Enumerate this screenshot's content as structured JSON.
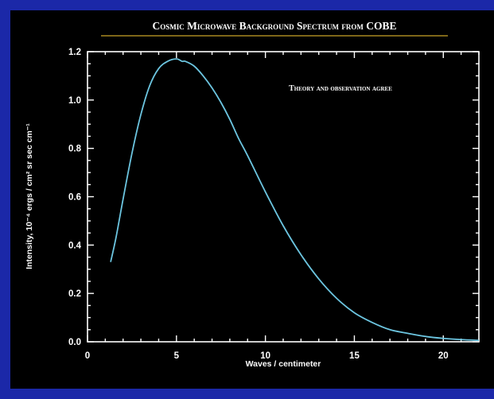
{
  "colors": {
    "outer_border": "#1b28a8",
    "background": "#000000",
    "curve": "#6cc5e0",
    "text": "#ffffff",
    "title_rule": "#c9a227"
  },
  "chart_data": {
    "type": "line",
    "title": "Cosmic Microwave Background Spectrum from COBE",
    "annotation": "Theory and observation agree",
    "xlabel": "Waves / centimeter",
    "ylabel": "Intensity, 10⁻⁴ ergs / cm² sr sec cm⁻¹",
    "xlim": [
      0,
      22
    ],
    "ylim": [
      0,
      1.2
    ],
    "x_ticks": [
      "0",
      "5",
      "10",
      "15",
      "20"
    ],
    "y_ticks": [
      "0.0",
      "0.2",
      "0.4",
      "0.6",
      "0.8",
      "1.0",
      "1.2"
    ],
    "grid": false,
    "series": [
      {
        "x": [
          1.3,
          1.6,
          2.0,
          2.5,
          3.0,
          3.5,
          4.0,
          4.5,
          5.0,
          5.32,
          5.5,
          6.0,
          6.5,
          7.0,
          7.5,
          8.0,
          8.5,
          9.0,
          10.0,
          11.0,
          12.0,
          13.0,
          14.0,
          15.0,
          16.0,
          17.0,
          18.0,
          19.0,
          20.0,
          21.0,
          22.0
        ],
        "y": [
          0.33,
          0.43,
          0.59,
          0.78,
          0.94,
          1.06,
          1.13,
          1.16,
          1.17,
          1.16,
          1.16,
          1.14,
          1.1,
          1.05,
          0.99,
          0.92,
          0.84,
          0.77,
          0.62,
          0.48,
          0.36,
          0.26,
          0.18,
          0.12,
          0.08,
          0.05,
          0.035,
          0.022,
          0.014,
          0.009,
          0.006
        ]
      }
    ]
  }
}
